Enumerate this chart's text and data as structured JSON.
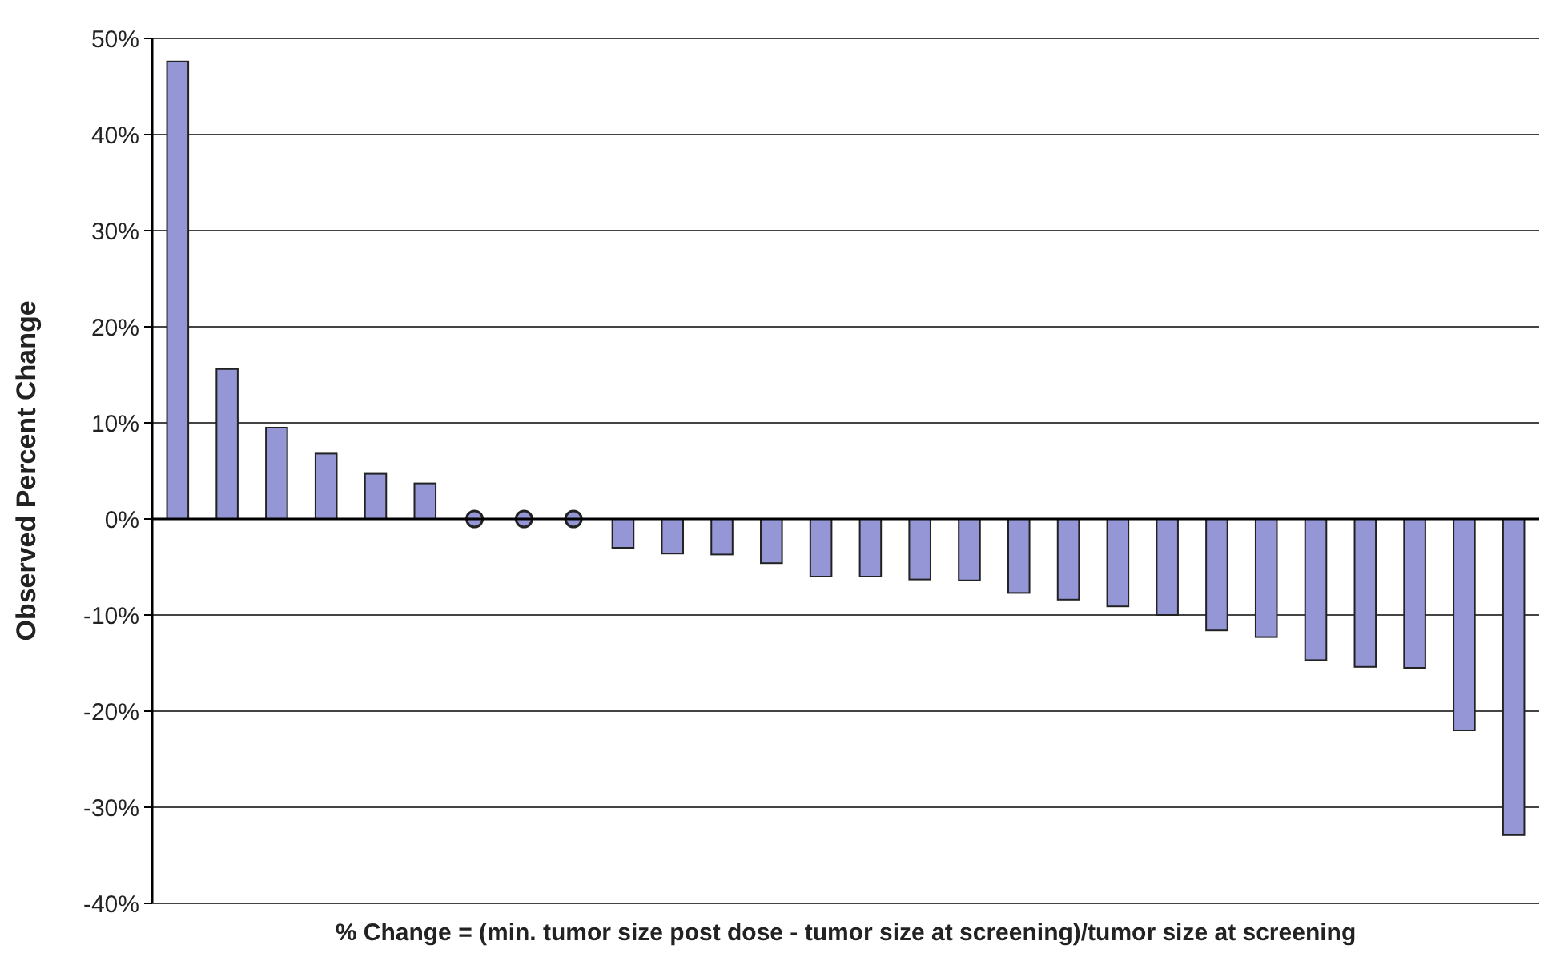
{
  "chart_data": {
    "type": "bar",
    "xlabel": "% Change = (min. tumor size post dose - tumor size at screening)/tumor size at screening",
    "ylabel": "Observed Percent Change",
    "categories": [
      null,
      null,
      null,
      null,
      null,
      null,
      null,
      null,
      null,
      null,
      null,
      null,
      null,
      null,
      null,
      null,
      null,
      null,
      null,
      null,
      null,
      null,
      null,
      null,
      null,
      null,
      null,
      null
    ],
    "series": [
      {
        "color": "#9496d6",
        "values": [
          47.6,
          15.6,
          9.5,
          6.8,
          4.7,
          3.7,
          null,
          null,
          null,
          -3.0,
          -3.6,
          -3.7,
          -4.6,
          -6.0,
          -6.0,
          -6.3,
          -6.4,
          -7.7,
          -8.4,
          -9.1,
          -10.0,
          -11.6,
          -12.3,
          -14.7,
          -15.4,
          -15.5,
          -22.0,
          -32.9
        ]
      },
      {
        "type": "scatter",
        "color": "#9496d6",
        "marker": "circle",
        "values": [
          null,
          null,
          null,
          null,
          null,
          null,
          0,
          0,
          0,
          null,
          null,
          null,
          null,
          null,
          null,
          null,
          null,
          null,
          null,
          null,
          null,
          null,
          null,
          null,
          null,
          null,
          null,
          null
        ]
      }
    ],
    "ylim": [
      -40,
      50
    ],
    "yticks": [
      {
        "value": -40,
        "label": "-40%"
      },
      {
        "value": -30,
        "label": "-30%"
      },
      {
        "value": -20,
        "label": "-20%"
      },
      {
        "value": -10,
        "label": "-10%"
      },
      {
        "value": 0,
        "label": "0%"
      },
      {
        "value": 10,
        "label": "10%"
      },
      {
        "value": 20,
        "label": "20%"
      },
      {
        "value": 30,
        "label": "30%"
      },
      {
        "value": 40,
        "label": "40%"
      },
      {
        "value": 50,
        "label": "50%"
      }
    ],
    "grid": "y"
  }
}
